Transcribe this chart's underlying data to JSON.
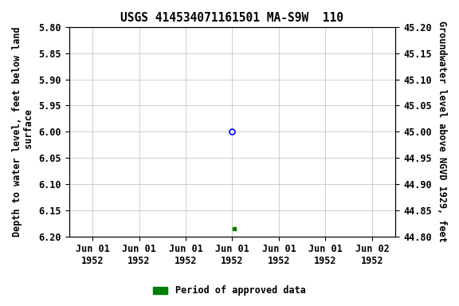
{
  "title": "USGS 414534071161501 MA-S9W  110",
  "ylabel_left": "Depth to water level, feet below land\n surface",
  "ylabel_right": "Groundwater level above NGVD 1929, feet",
  "ylim_left": [
    5.8,
    6.2
  ],
  "ylim_right": [
    44.8,
    45.2
  ],
  "yticks_left": [
    5.8,
    5.85,
    5.9,
    5.95,
    6.0,
    6.05,
    6.1,
    6.15,
    6.2
  ],
  "yticks_right": [
    44.8,
    44.85,
    44.9,
    44.95,
    45.0,
    45.05,
    45.1,
    45.15,
    45.2
  ],
  "point_blue_value": 6.0,
  "point_green_value": 6.185,
  "legend_label": "Period of approved data",
  "legend_color": "#008000",
  "background_color": "#ffffff",
  "grid_color": "#c8c8c8",
  "title_fontsize": 10.5,
  "axis_fontsize": 8.5,
  "tick_fontsize": 8.5
}
